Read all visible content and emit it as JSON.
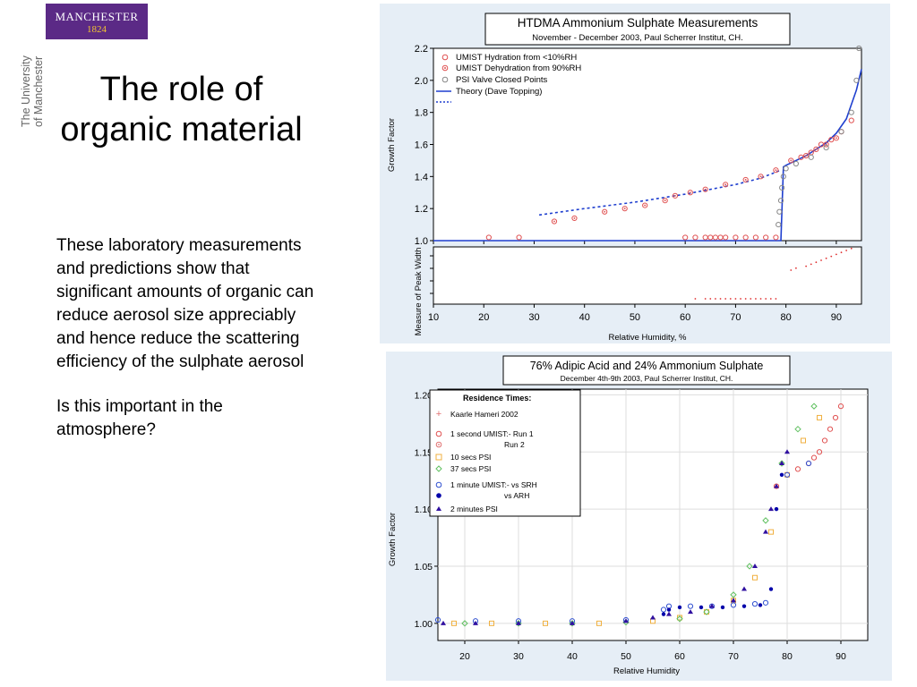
{
  "header": {
    "logo_text": "MANCHESTER",
    "logo_year": "1824",
    "university_line1": "The University",
    "university_line2": "of Manchester"
  },
  "slide": {
    "title": "The role of organic material",
    "paragraph1": "These laboratory measurements and predictions show that significant amounts of organic can reduce aerosol size appreciably and hence reduce the scattering efficiency of the sulphate aerosol",
    "paragraph2": "Is this important in the atmosphere?"
  },
  "chart_data": [
    {
      "type": "scatter",
      "title": "HTDMA Ammonium Sulphate Measurements",
      "subtitle": "November - December 2003, Paul Scherrer Institut, CH.",
      "xlabel": "Relative Humidity, %",
      "ylabel": "Growth Factor",
      "ylabel_lower": "Measure of Peak Width",
      "xlim": [
        10,
        95
      ],
      "ylim": [
        1.0,
        2.2
      ],
      "xticks": [
        "10",
        "20",
        "30",
        "40",
        "50",
        "60",
        "70",
        "80",
        "90"
      ],
      "yticks": [
        "1.0",
        "1.2",
        "1.4",
        "1.6",
        "1.8",
        "2.0",
        "2.2"
      ],
      "legend": [
        "UMIST Hydration from <10%RH",
        "UMIST Dehydration from 90%RH",
        "PSI Valve Closed Points",
        "Theory (Dave Topping)"
      ],
      "colors": {
        "umist": "#e05050",
        "psi": "#888888",
        "theory": "#1f3fcf"
      },
      "series": [
        {
          "name": "Theory (Dave Topping)",
          "style": "solid",
          "x": [
            10,
            79,
            79.5,
            80,
            82,
            84,
            86,
            88,
            90,
            92,
            94,
            95
          ],
          "y": [
            1.0,
            1.0,
            1.46,
            1.47,
            1.5,
            1.53,
            1.57,
            1.61,
            1.67,
            1.76,
            1.94,
            2.07
          ]
        },
        {
          "name": "Theory (Dave Topping) dotted",
          "style": "dotted",
          "x": [
            31,
            40,
            50,
            60,
            70,
            75,
            79
          ],
          "y": [
            1.16,
            1.2,
            1.24,
            1.29,
            1.35,
            1.39,
            1.44
          ]
        },
        {
          "name": "UMIST Hydration from <10%RH",
          "marker": "circle",
          "x": [
            21,
            27,
            60,
            62,
            64,
            65,
            66,
            67,
            68,
            70,
            72,
            74,
            76,
            78,
            83,
            85,
            87,
            89,
            91,
            93
          ],
          "y": [
            1.02,
            1.02,
            1.02,
            1.02,
            1.02,
            1.02,
            1.02,
            1.02,
            1.02,
            1.02,
            1.02,
            1.02,
            1.02,
            1.02,
            1.52,
            1.55,
            1.6,
            1.63,
            1.68,
            1.75
          ]
        },
        {
          "name": "UMIST Dehydration from 90%RH",
          "marker": "circle-dot",
          "x": [
            34,
            38,
            44,
            48,
            52,
            56,
            58,
            61,
            64,
            68,
            72,
            75,
            78,
            81,
            84,
            86,
            88,
            90
          ],
          "y": [
            1.12,
            1.14,
            1.18,
            1.2,
            1.22,
            1.25,
            1.28,
            1.3,
            1.32,
            1.35,
            1.38,
            1.4,
            1.44,
            1.5,
            1.53,
            1.57,
            1.6,
            1.64
          ]
        },
        {
          "name": "PSI Valve Closed Points",
          "marker": "circle",
          "x": [
            78.5,
            78.7,
            79,
            79.2,
            79.5,
            80,
            82,
            85,
            88,
            91,
            93,
            94,
            94.5
          ],
          "y": [
            1.1,
            1.18,
            1.25,
            1.33,
            1.4,
            1.45,
            1.48,
            1.52,
            1.58,
            1.68,
            1.8,
            2.0,
            2.2
          ]
        }
      ]
    },
    {
      "type": "scatter",
      "title": "76% Adipic Acid and 24% Ammonium Sulphate",
      "subtitle": "December 4th-9th 2003, Paul Scherrer Institut, CH.",
      "xlabel": "Relative Humidity",
      "ylabel": "Growth Factor",
      "xlim": [
        15,
        95
      ],
      "ylim": [
        0.985,
        1.205
      ],
      "xticks": [
        "20",
        "30",
        "40",
        "50",
        "60",
        "70",
        "80",
        "90"
      ],
      "yticks": [
        "1.00",
        "1.05",
        "1.10",
        "1.15",
        "1.20"
      ],
      "legend_title": "Residence Times:",
      "legend": [
        {
          "marker": "+",
          "color": "#e07070",
          "text": "Kaarle Hameri 2002"
        },
        {
          "marker": "o",
          "color": "#e05050",
          "text": "1 second  UMIST:-          Run 1"
        },
        {
          "marker": "od",
          "color": "#e07070",
          "text": "Run 2"
        },
        {
          "marker": "s",
          "color": "#f0b040",
          "text": "10 secs   PSI"
        },
        {
          "marker": "d",
          "color": "#60c060",
          "text": "37 secs   PSI"
        },
        {
          "marker": "o",
          "color": "#3050d0",
          "text": "1 minute  UMIST:-          vs SRH"
        },
        {
          "marker": "dot",
          "color": "#0000aa",
          "text": "vs ARH"
        },
        {
          "marker": "tri",
          "color": "#3010a0",
          "text": "2 minutes PSI"
        }
      ],
      "series": [
        {
          "name": "1 second UMIST Run 1",
          "color": "#e05050",
          "x": [
            78,
            80,
            82,
            84,
            85,
            86,
            87,
            88,
            89,
            90
          ],
          "y": [
            1.12,
            1.13,
            1.135,
            1.14,
            1.145,
            1.15,
            1.16,
            1.17,
            1.18,
            1.19
          ]
        },
        {
          "name": "10 secs PSI",
          "color": "#f0b040",
          "x": [
            18,
            25,
            35,
            45,
            55,
            60,
            65,
            70,
            74,
            77,
            80,
            83,
            86
          ],
          "y": [
            1.0,
            1.0,
            1.0,
            1.0,
            1.002,
            1.005,
            1.01,
            1.02,
            1.04,
            1.08,
            1.13,
            1.16,
            1.18
          ]
        },
        {
          "name": "37 secs PSI",
          "color": "#60c060",
          "x": [
            20,
            30,
            40,
            50,
            60,
            65,
            70,
            73,
            76,
            79,
            82,
            85
          ],
          "y": [
            1.0,
            1.0,
            1.0,
            1.001,
            1.004,
            1.01,
            1.025,
            1.05,
            1.09,
            1.14,
            1.17,
            1.19
          ]
        },
        {
          "name": "1 minute UMIST vs SRH",
          "color": "#3050d0",
          "x": [
            15,
            22,
            30,
            40,
            50,
            57,
            58,
            62,
            66,
            70,
            74,
            76,
            80,
            84
          ],
          "y": [
            1.003,
            1.002,
            1.002,
            1.002,
            1.003,
            1.012,
            1.015,
            1.015,
            1.015,
            1.016,
            1.017,
            1.018,
            1.13,
            1.14
          ]
        },
        {
          "name": "vs ARH",
          "color": "#0000aa",
          "x": [
            57,
            58,
            60,
            64,
            68,
            72,
            75,
            77,
            78,
            79
          ],
          "y": [
            1.008,
            1.012,
            1.014,
            1.014,
            1.014,
            1.015,
            1.016,
            1.03,
            1.1,
            1.13
          ]
        },
        {
          "name": "2 minutes PSI",
          "color": "#3010a0",
          "x": [
            16,
            22,
            30,
            40,
            50,
            55,
            58,
            62,
            66,
            70,
            72,
            74,
            76,
            77,
            78,
            79,
            80
          ],
          "y": [
            1.0,
            1.0,
            1.0,
            1.0,
            1.002,
            1.005,
            1.008,
            1.01,
            1.015,
            1.02,
            1.03,
            1.05,
            1.08,
            1.1,
            1.12,
            1.14,
            1.15
          ]
        }
      ]
    }
  ]
}
